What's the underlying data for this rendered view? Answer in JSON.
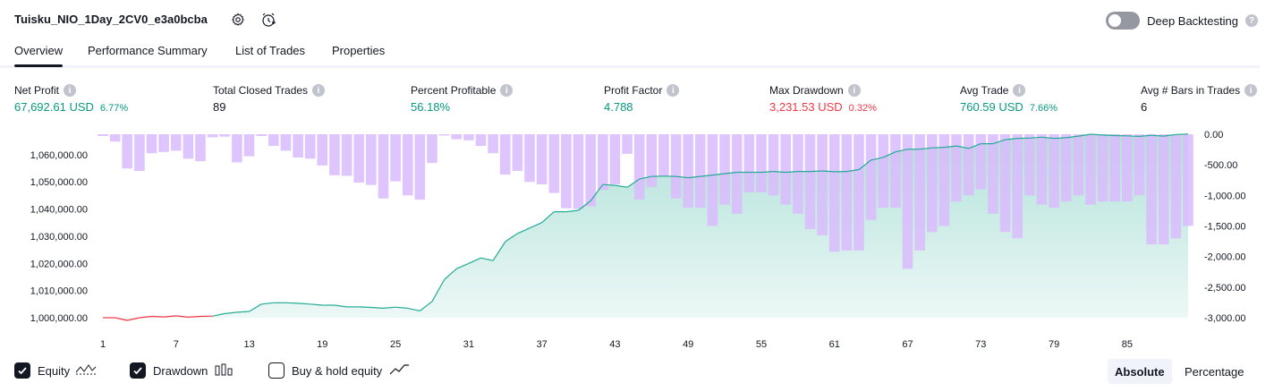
{
  "header": {
    "title": "Tuisku_NIO_1Day_2CV0_e3a0bcba",
    "deep_backtesting_label": "Deep Backtesting",
    "deep_backtesting_on": false
  },
  "tabs": [
    {
      "label": "Overview",
      "active": true
    },
    {
      "label": "Performance Summary",
      "active": false
    },
    {
      "label": "List of Trades",
      "active": false
    },
    {
      "label": "Properties",
      "active": false
    }
  ],
  "metrics": [
    {
      "label": "Net Profit",
      "value": "67,692.61 USD",
      "pct": "6.77%",
      "tone": "green"
    },
    {
      "label": "Total Closed Trades",
      "value": "89",
      "pct": "",
      "tone": "dark"
    },
    {
      "label": "Percent Profitable",
      "value": "56.18%",
      "pct": "",
      "tone": "green"
    },
    {
      "label": "Profit Factor",
      "value": "4.788",
      "pct": "",
      "tone": "green"
    },
    {
      "label": "Max Drawdown",
      "value": "3,231.53 USD",
      "pct": "0.32%",
      "tone": "red"
    },
    {
      "label": "Avg Trade",
      "value": "760.59 USD",
      "pct": "7.66%",
      "tone": "green"
    },
    {
      "label": "Avg # Bars in Trades",
      "value": "6",
      "pct": "",
      "tone": "dark"
    }
  ],
  "chart_data": {
    "type": "line",
    "x_ticks": [
      "1",
      "7",
      "13",
      "19",
      "25",
      "31",
      "37",
      "43",
      "49",
      "55",
      "61",
      "67",
      "73",
      "79",
      "85"
    ],
    "y_left_ticks": [
      "1,000,000.00",
      "1,010,000.00",
      "1,020,000.00",
      "1,030,000.00",
      "1,040,000.00",
      "1,050,000.00",
      "1,060,000.00"
    ],
    "y_right_ticks": [
      "0.00",
      "-500.00",
      "-1,000.00",
      "-1,500.00",
      "-2,000.00",
      "-2,500.00",
      "-3,000.00"
    ],
    "ylim_left": [
      1000000,
      1067500
    ],
    "ylim_right": [
      -3000,
      0
    ],
    "grid": false,
    "series": [
      {
        "name": "Equity",
        "color": "#22ab94",
        "negative_color": "#f23645",
        "values": [
          1000000,
          1000000,
          999000,
          1000000,
          1000500,
          1000300,
          1000700,
          1000200,
          1000500,
          1000600,
          1001500,
          1002000,
          1002300,
          1005000,
          1005500,
          1005500,
          1005300,
          1005000,
          1004600,
          1004600,
          1004000,
          1004000,
          1003800,
          1003500,
          1003900,
          1003500,
          1002500,
          1006000,
          1014000,
          1018000,
          1020000,
          1022000,
          1021000,
          1028000,
          1031000,
          1033000,
          1035000,
          1039000,
          1039000,
          1039500,
          1043000,
          1049000,
          1048700,
          1048000,
          1051000,
          1052000,
          1052100,
          1052000,
          1051500,
          1052000,
          1052500,
          1053000,
          1053500,
          1053500,
          1053500,
          1053800,
          1053500,
          1053800,
          1053800,
          1054000,
          1053700,
          1053800,
          1054500,
          1058000,
          1059000,
          1061000,
          1062000,
          1062000,
          1062500,
          1062700,
          1063200,
          1062300,
          1064000,
          1064000,
          1065500,
          1066000,
          1066100,
          1066400,
          1066000,
          1066200,
          1066800,
          1067500,
          1067200,
          1067000,
          1066900,
          1066700,
          1067100,
          1066800,
          1067400,
          1067600
        ]
      },
      {
        "name": "Drawdown",
        "color": "#d9bbfd",
        "values": [
          -30,
          -120,
          -560,
          -600,
          -310,
          -290,
          -270,
          -400,
          -440,
          -50,
          -40,
          -460,
          -360,
          -30,
          -190,
          -270,
          -380,
          -400,
          -510,
          -670,
          -680,
          -790,
          -830,
          -1050,
          -770,
          -1000,
          -1070,
          -470,
          -20,
          -80,
          -100,
          -190,
          -310,
          -660,
          -600,
          -780,
          -820,
          -960,
          -1210,
          -1220,
          -1180,
          -910,
          -820,
          -320,
          -1070,
          -860,
          -690,
          -1050,
          -1200,
          -1200,
          -1500,
          -1150,
          -1300,
          -950,
          -950,
          -1000,
          -1150,
          -1300,
          -1550,
          -1650,
          -1920,
          -1900,
          -1900,
          -1400,
          -1200,
          -1200,
          -2200,
          -1900,
          -1600,
          -1500,
          -1100,
          -1000,
          -900,
          -1300,
          -1600,
          -1700,
          -1000,
          -1150,
          -1200,
          -1100,
          -1000,
          -1150,
          -1100,
          -1100,
          -1100,
          -1000,
          -1800,
          -1800,
          -1700,
          -1500
        ]
      }
    ]
  },
  "legend": {
    "equity_label": "Equity",
    "drawdown_label": "Drawdown",
    "buyhold_label": "Buy & hold equity",
    "equity_checked": true,
    "drawdown_checked": true,
    "buyhold_checked": false,
    "absolute_label": "Absolute",
    "percentage_label": "Percentage"
  }
}
